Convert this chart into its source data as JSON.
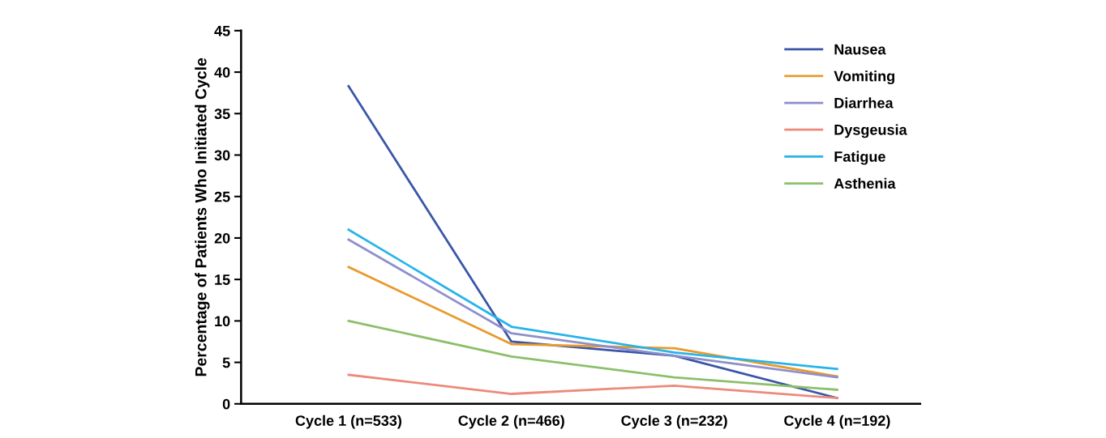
{
  "chart_data": {
    "type": "line",
    "ylabel": "Percentage of Patients Who Initiated Cycle",
    "categories": [
      "Cycle 1 (n=533)",
      "Cycle 2 (n=466)",
      "Cycle 3 (n=232)",
      "Cycle 4 (n=192)"
    ],
    "ylim": [
      0,
      45
    ],
    "yticks": [
      0,
      5,
      10,
      15,
      20,
      25,
      30,
      35,
      40,
      45
    ],
    "grid": false,
    "legend": "top right",
    "marker": "none",
    "line_style": "solid",
    "series": [
      {
        "name": "Nausea",
        "color": "#3a56a8",
        "values": [
          38.3,
          7.5,
          5.8,
          0.7
        ]
      },
      {
        "name": "Vomiting",
        "color": "#e89a2c",
        "values": [
          16.5,
          7.2,
          6.7,
          3.3
        ]
      },
      {
        "name": "Diarrhea",
        "color": "#8e8fcc",
        "values": [
          19.8,
          8.5,
          5.8,
          3.2
        ]
      },
      {
        "name": "Dysgeusia",
        "color": "#ec8a7c",
        "values": [
          3.5,
          1.2,
          2.2,
          0.7
        ]
      },
      {
        "name": "Fatigue",
        "color": "#27b4e8",
        "values": [
          21.0,
          9.3,
          6.2,
          4.2
        ]
      },
      {
        "name": "Asthenia",
        "color": "#8dbf6a",
        "values": [
          10.0,
          5.7,
          3.2,
          1.7
        ]
      }
    ]
  }
}
